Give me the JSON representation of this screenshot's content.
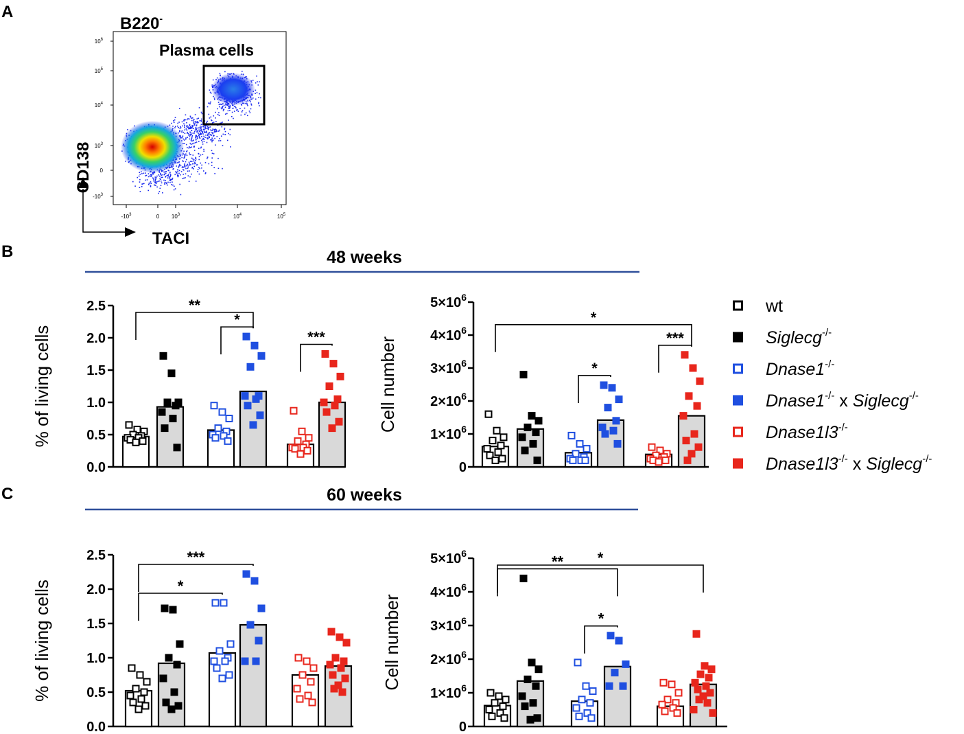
{
  "panel_labels": [
    "A",
    "B",
    "C"
  ],
  "flow": {
    "gate_title": "B220",
    "gate_title_sup": "-",
    "gate_label": "Plasma cells",
    "y_axis_label": "CD138",
    "x_axis_label": "TACI",
    "y_ticks": [
      {
        "base": "10",
        "exp": "6"
      },
      {
        "base": "10",
        "exp": "5"
      },
      {
        "base": "10",
        "exp": "4"
      },
      {
        "base": "10",
        "exp": "3"
      },
      {
        "base": "0",
        "exp": ""
      },
      {
        "base": "-10",
        "exp": "3"
      }
    ],
    "x_ticks": [
      {
        "base": "-10",
        "exp": "3"
      },
      {
        "base": "0",
        "exp": ""
      },
      {
        "base": "10",
        "exp": "3"
      },
      {
        "base": "10",
        "exp": "4"
      },
      {
        "base": "10",
        "exp": "5"
      }
    ]
  },
  "section_titles": [
    "48 weeks",
    "60 weeks"
  ],
  "legend": [
    {
      "parts": [
        {
          "t": "wt",
          "i": false
        }
      ],
      "color": "#000000",
      "filled": false
    },
    {
      "parts": [
        {
          "t": "Siglecg",
          "i": true
        },
        {
          "t": "-/-",
          "sup": true
        }
      ],
      "color": "#000000",
      "filled": true
    },
    {
      "parts": [
        {
          "t": "Dnase1",
          "i": true
        },
        {
          "t": "-/-",
          "sup": true
        }
      ],
      "color": "#1f4fe0",
      "filled": false
    },
    {
      "parts": [
        {
          "t": "Dnase1",
          "i": true
        },
        {
          "t": "-/-",
          "sup": true
        },
        {
          "t": " x ",
          "i": false
        },
        {
          "t": "Siglecg",
          "i": true
        },
        {
          "t": "-/-",
          "sup": true
        }
      ],
      "color": "#1f4fe0",
      "filled": true
    },
    {
      "parts": [
        {
          "t": "Dnase1l3",
          "i": true
        },
        {
          "t": "-/-",
          "sup": true
        }
      ],
      "color": "#e8261c",
      "filled": false
    },
    {
      "parts": [
        {
          "t": "Dnase1l3",
          "i": true
        },
        {
          "t": "-/-",
          "sup": true
        },
        {
          "t": " x ",
          "i": false
        },
        {
          "t": "Siglecg",
          "i": true
        },
        {
          "t": "-/-",
          "sup": true
        }
      ],
      "color": "#e8261c",
      "filled": true
    }
  ],
  "colors": {
    "wt": "#000000",
    "blue": "#1f4fe0",
    "red": "#e8261c",
    "bar_fill": "#d9d9d9",
    "section_line": "#2f4f9a"
  },
  "chart_data": [
    {
      "id": "b_percent",
      "type": "bar",
      "section": "48 weeks",
      "ylabel": "% of living cells",
      "ylim": [
        0,
        2.5
      ],
      "yticks": [
        "0.0",
        "0.5",
        "1.0",
        "1.5",
        "2.0",
        "2.5"
      ],
      "categories": [
        "wt",
        "Siglecg-/-",
        "Dnase1-/-",
        "Dnase1-/- x Siglecg-/-",
        "Dnase1l3-/-",
        "Dnase1l3-/- x Siglecg-/-"
      ],
      "bar_means": [
        0.47,
        0.93,
        0.57,
        1.17,
        0.35,
        1.0
      ],
      "points": [
        [
          0.65,
          0.58,
          0.55,
          0.5,
          0.48,
          0.45,
          0.45,
          0.42,
          0.4,
          0.38
        ],
        [
          1.72,
          1.45,
          1.0,
          1.0,
          0.95,
          0.85,
          0.75,
          0.6,
          0.3
        ],
        [
          0.95,
          0.85,
          0.75,
          0.6,
          0.55,
          0.5,
          0.48,
          0.45,
          0.4
        ],
        [
          2.02,
          1.88,
          1.72,
          1.55,
          1.1,
          1.1,
          1.05,
          0.95,
          0.8,
          0.65
        ],
        [
          0.87,
          0.55,
          0.45,
          0.4,
          0.35,
          0.3,
          0.3,
          0.28,
          0.25,
          0.2
        ],
        [
          1.75,
          1.6,
          1.4,
          1.25,
          1.05,
          1.0,
          0.95,
          0.85,
          0.7,
          0.6
        ]
      ],
      "significance": [
        {
          "from": 0,
          "to": 3,
          "label": "**"
        },
        {
          "from": 2,
          "to": 3,
          "label": "*"
        },
        {
          "from": 4,
          "to": 5,
          "label": "***"
        }
      ]
    },
    {
      "id": "b_number",
      "type": "bar",
      "section": "48 weeks",
      "ylabel": "Cell number",
      "ylim": [
        0,
        5000000
      ],
      "yticks": [
        {
          "base": "0",
          "exp": ""
        },
        {
          "base": "1×10",
          "exp": "6"
        },
        {
          "base": "2×10",
          "exp": "6"
        },
        {
          "base": "3×10",
          "exp": "6"
        },
        {
          "base": "4×10",
          "exp": "6"
        },
        {
          "base": "5×10",
          "exp": "6"
        }
      ],
      "categories": [
        "wt",
        "Siglecg-/-",
        "Dnase1-/-",
        "Dnase1-/- x Siglecg-/-",
        "Dnase1l3-/-",
        "Dnase1l3-/- x Siglecg-/-"
      ],
      "bar_means": [
        620000,
        1150000,
        430000,
        1420000,
        380000,
        1550000
      ],
      "points": [
        [
          1600000,
          1100000,
          900000,
          800000,
          650000,
          550000,
          450000,
          350000,
          250000,
          200000
        ],
        [
          2800000,
          1550000,
          1400000,
          1200000,
          1050000,
          900000,
          700000,
          500000,
          200000
        ],
        [
          950000,
          700000,
          550000,
          400000,
          300000,
          250000,
          200000,
          200000,
          200000
        ],
        [
          2480000,
          2400000,
          2050000,
          1800000,
          1400000,
          1200000,
          1100000,
          1000000,
          700000
        ],
        [
          600000,
          500000,
          400000,
          350000,
          300000,
          250000,
          200000,
          200000,
          200000,
          150000
        ],
        [
          3400000,
          3000000,
          2600000,
          2150000,
          1850000,
          1550000,
          1000000,
          800000,
          600000,
          400000,
          200000
        ]
      ],
      "significance": [
        {
          "from": 0,
          "to": 5,
          "label": "*"
        },
        {
          "from": 2,
          "to": 3,
          "label": "*"
        },
        {
          "from": 4,
          "to": 5,
          "label": "***"
        }
      ]
    },
    {
      "id": "c_percent",
      "type": "bar",
      "section": "60 weeks",
      "ylabel": "% of living cells",
      "ylim": [
        0,
        2.5
      ],
      "yticks": [
        "0.0",
        "0.5",
        "1.0",
        "1.5",
        "2.0",
        "2.5"
      ],
      "categories": [
        "wt",
        "Siglecg-/-",
        "Dnase1-/-",
        "Dnase1-/- x Siglecg-/-",
        "Dnase1l3-/-",
        "Dnase1l3-/- x Siglecg-/-"
      ],
      "bar_means": [
        0.52,
        0.92,
        1.07,
        1.48,
        0.75,
        0.88
      ],
      "points": [
        [
          0.85,
          0.75,
          0.65,
          0.55,
          0.5,
          0.45,
          0.4,
          0.35,
          0.3,
          0.25
        ],
        [
          1.72,
          1.7,
          1.2,
          1.0,
          0.9,
          0.7,
          0.5,
          0.35,
          0.3,
          0.25
        ],
        [
          1.8,
          1.8,
          1.2,
          1.1,
          1.0,
          0.95,
          0.95,
          0.85,
          0.75,
          0.7
        ],
        [
          2.22,
          2.12,
          1.72,
          1.48,
          1.25,
          0.95,
          0.95
        ],
        [
          1.0,
          0.95,
          0.85,
          0.75,
          0.65,
          0.55,
          0.45,
          0.4,
          0.35
        ],
        [
          1.38,
          1.3,
          1.22,
          1.0,
          0.95,
          0.9,
          0.85,
          0.75,
          0.7,
          0.6,
          0.55,
          0.5
        ]
      ],
      "significance": [
        {
          "from": 0,
          "to": 3,
          "label": "***"
        },
        {
          "from": 0,
          "to": 2,
          "label": "*"
        }
      ]
    },
    {
      "id": "c_number",
      "type": "bar",
      "section": "60 weeks",
      "ylabel": "Cell number",
      "ylim": [
        0,
        5000000
      ],
      "yticks": [
        {
          "base": "0",
          "exp": ""
        },
        {
          "base": "1×10",
          "exp": "6"
        },
        {
          "base": "2×10",
          "exp": "6"
        },
        {
          "base": "3×10",
          "exp": "6"
        },
        {
          "base": "4×10",
          "exp": "6"
        },
        {
          "base": "5×10",
          "exp": "6"
        }
      ],
      "categories": [
        "wt",
        "Siglecg-/-",
        "Dnase1-/-",
        "Dnase1-/- x Siglecg-/-",
        "Dnase1l3-/-",
        "Dnase1l3-/- x Siglecg-/-"
      ],
      "bar_means": [
        620000,
        1350000,
        750000,
        1780000,
        600000,
        1250000
      ],
      "points": [
        [
          1000000,
          900000,
          800000,
          700000,
          600000,
          500000,
          400000,
          300000,
          250000
        ],
        [
          4400000,
          1900000,
          1700000,
          1400000,
          1200000,
          900000,
          700000,
          600000,
          250000,
          200000
        ],
        [
          1900000,
          1200000,
          1050000,
          800000,
          700000,
          550000,
          400000,
          300000,
          250000
        ],
        [
          2700000,
          2550000,
          1850000,
          1600000,
          1200000,
          1200000
        ],
        [
          1300000,
          1250000,
          1000000,
          800000,
          700000,
          650000,
          550000,
          450000,
          400000
        ],
        [
          2750000,
          1800000,
          1700000,
          1550000,
          1450000,
          1300000,
          1200000,
          1100000,
          1000000,
          900000,
          800000,
          700000,
          500000,
          400000
        ]
      ],
      "significance": [
        {
          "from": 0,
          "to": 5,
          "label": "*"
        },
        {
          "from": 0,
          "to": 3,
          "label": "**"
        },
        {
          "from": 2,
          "to": 3,
          "label": "*"
        }
      ]
    }
  ]
}
